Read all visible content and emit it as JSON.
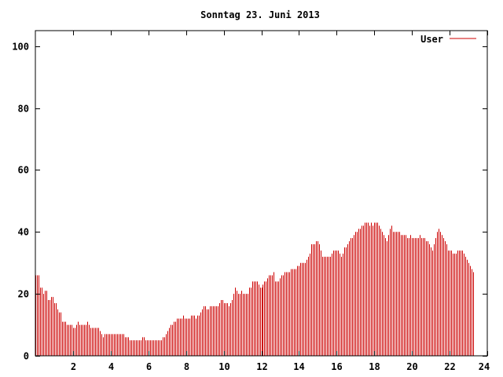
{
  "chart_data": {
    "type": "bar",
    "title": "Sonntag 23. Juni 2013",
    "xlabel": "",
    "ylabel": "",
    "xlim": [
      0,
      24
    ],
    "ylim": [
      0,
      105
    ],
    "x_ticks": [
      2,
      4,
      6,
      8,
      10,
      12,
      14,
      16,
      18,
      20,
      22,
      24
    ],
    "y_ticks": [
      0,
      20,
      40,
      60,
      80,
      100
    ],
    "grid": false,
    "legend_position": "top-right",
    "bar_color": "#cc0000",
    "series": [
      {
        "name": "User",
        "sample_interval_minutes": 5,
        "values": [
          26,
          26,
          26,
          22,
          22,
          20,
          21,
          21,
          18,
          18,
          19,
          19,
          17,
          17,
          15,
          14,
          14,
          11,
          11,
          11,
          10,
          10,
          10,
          10,
          9,
          9,
          10,
          11,
          10,
          10,
          10,
          10,
          10,
          11,
          10,
          9,
          9,
          9,
          9,
          9,
          9,
          8,
          7,
          6,
          7,
          7,
          7,
          7,
          7,
          7,
          7,
          7,
          7,
          7,
          7,
          7,
          7,
          6,
          6,
          6,
          5,
          5,
          5,
          5,
          5,
          5,
          5,
          5,
          6,
          6,
          5,
          5,
          5,
          5,
          5,
          5,
          5,
          5,
          5,
          5,
          5,
          6,
          6,
          7,
          8,
          9,
          10,
          10,
          11,
          11,
          12,
          12,
          12,
          12,
          13,
          12,
          12,
          12,
          12,
          13,
          13,
          13,
          12,
          13,
          13,
          14,
          15,
          16,
          16,
          15,
          15,
          16,
          16,
          16,
          16,
          16,
          16,
          17,
          18,
          18,
          17,
          17,
          17,
          16,
          17,
          18,
          20,
          22,
          21,
          20,
          20,
          21,
          20,
          20,
          20,
          20,
          22,
          22,
          24,
          24,
          24,
          24,
          23,
          22,
          22,
          23,
          24,
          24,
          25,
          26,
          26,
          26,
          27,
          24,
          24,
          24,
          25,
          26,
          26,
          27,
          27,
          27,
          27,
          28,
          28,
          28,
          28,
          29,
          29,
          30,
          30,
          30,
          30,
          31,
          32,
          33,
          36,
          36,
          36,
          37,
          37,
          36,
          34,
          32,
          32,
          32,
          32,
          32,
          32,
          33,
          34,
          34,
          34,
          34,
          33,
          32,
          33,
          35,
          35,
          36,
          37,
          38,
          38,
          39,
          40,
          40,
          41,
          41,
          42,
          42,
          43,
          43,
          43,
          42,
          43,
          42,
          43,
          43,
          43,
          42,
          41,
          40,
          39,
          38,
          37,
          39,
          41,
          42,
          40,
          40,
          40,
          40,
          40,
          39,
          39,
          39,
          39,
          38,
          38,
          39,
          38,
          38,
          38,
          38,
          38,
          39,
          38,
          38,
          38,
          37,
          37,
          36,
          35,
          34,
          36,
          38,
          40,
          41,
          40,
          39,
          38,
          37,
          36,
          34,
          34,
          34,
          33,
          33,
          33,
          34,
          34,
          34,
          34,
          33,
          32,
          31,
          30,
          29,
          28,
          27
        ]
      }
    ]
  }
}
